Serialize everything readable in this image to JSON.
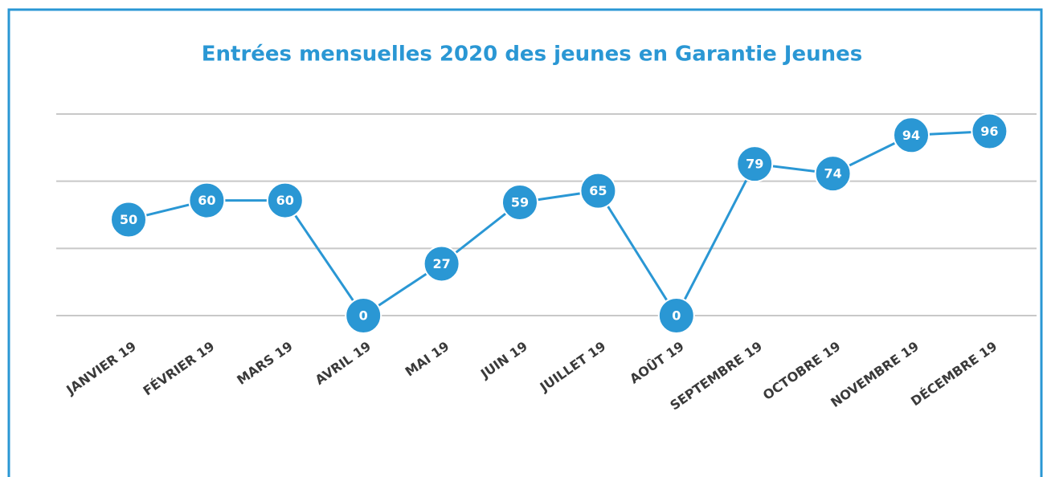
{
  "chart_data": {
    "type": "line",
    "title": "Entrées mensuelles 2020 des jeunes en Garantie Jeunes",
    "categories": [
      "JANVIER 19",
      "FÉVRIER 19",
      "MARS 19",
      "AVRIL 19",
      "MAI 19",
      "JUIN 19",
      "JUILLET 19",
      "AOÛT 19",
      "SEPTEMBRE 19",
      "OCTOBRE 19",
      "NOVEMBRE 19",
      "DÉCEMBRE 19"
    ],
    "series": [
      {
        "color": "#2a97d4",
        "values": [
          50,
          60,
          60,
          0,
          27,
          59,
          65,
          0,
          79,
          74,
          94,
          96
        ]
      }
    ],
    "ylim": [
      0,
      105
    ],
    "yticks": [
      0,
      35,
      70,
      105
    ],
    "grid": true
  }
}
